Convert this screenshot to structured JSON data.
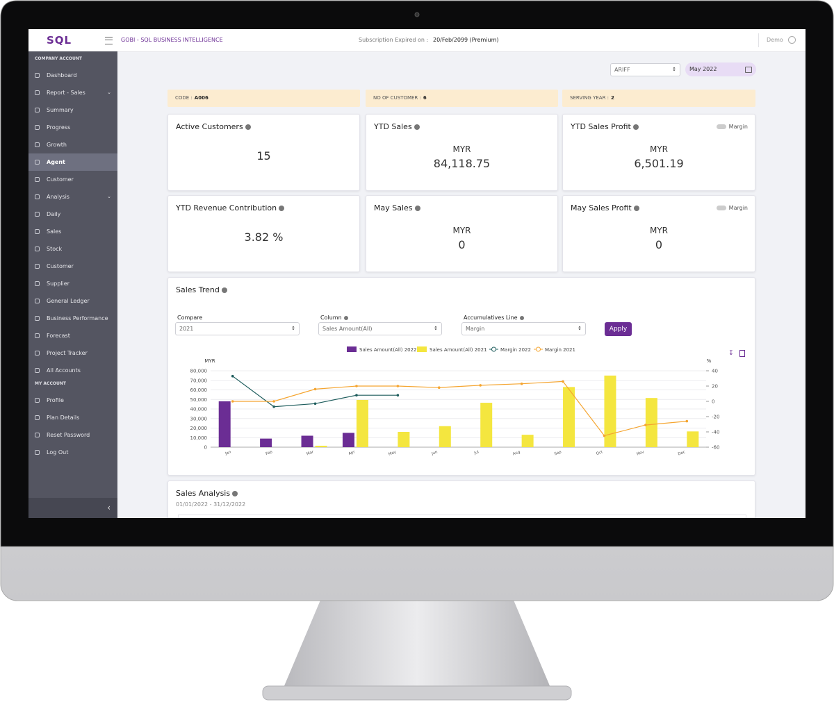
{
  "header": {
    "logo": "SQL",
    "app_title": "GOBI - SQL BUSINESS INTELLIGENCE",
    "subscription_label": "Subscription Expired on :",
    "subscription_value": "20/Feb/2099 (Premium)",
    "user": "Demo"
  },
  "sidebar": {
    "sections": [
      {
        "title": "COMPANY ACCOUNT",
        "items": [
          "Dashboard",
          "Report - Sales",
          "Summary",
          "Progress",
          "Growth",
          "Agent",
          "Customer",
          "Analysis",
          "Daily",
          "Sales",
          "Stock",
          "Customer",
          "Supplier",
          "General Ledger",
          "Business Performance",
          "Forecast",
          "Project Tracker",
          "All Accounts"
        ]
      },
      {
        "title": "MY ACCOUNT",
        "items": [
          "Profile",
          "Plan Details",
          "Reset Password",
          "Log Out"
        ]
      }
    ]
  },
  "filters": {
    "agent": "ARIFF",
    "month": "May 2022"
  },
  "info_bar": [
    {
      "label": "CODE :",
      "value": "A006"
    },
    {
      "label": "NO OF CUSTOMER :",
      "value": "6"
    },
    {
      "label": "SERVING YEAR :",
      "value": "2"
    }
  ],
  "cards": [
    {
      "title": "Active Customers",
      "value": "15"
    },
    {
      "title": "YTD Sales",
      "unit": "MYR",
      "value": "84,118.75"
    },
    {
      "title": "YTD Sales Profit",
      "unit": "MYR",
      "value": "6,501.19",
      "toggle": "Margin"
    },
    {
      "title": "YTD Revenue Contribution",
      "value": "3.82 %"
    },
    {
      "title": "May Sales",
      "unit": "MYR",
      "value": "0"
    },
    {
      "title": "May Sales Profit",
      "unit": "MYR",
      "value": "0",
      "toggle": "Margin"
    }
  ],
  "controls": [
    {
      "label": "Compare",
      "value": "2021"
    },
    {
      "label": "Column",
      "value": "Sales Amount(All)"
    },
    {
      "label": "Accumulatives Line",
      "value": "Margin"
    }
  ],
  "apply": "Apply",
  "chart_data": {
    "type": "combo",
    "title": "Sales Trend",
    "y_label": "MYR",
    "y2_label": "%",
    "categories": [
      "Jan",
      "Feb",
      "Mar",
      "Apr",
      "May",
      "Jun",
      "Jul",
      "Aug",
      "Sep",
      "Oct",
      "Nov",
      "Dec"
    ],
    "series": [
      {
        "name": "Sales Amount(All) 2022",
        "type": "bar",
        "color": "#6b2d94",
        "values": [
          48000,
          9000,
          12000,
          15000,
          0,
          null,
          null,
          null,
          null,
          null,
          null,
          null
        ]
      },
      {
        "name": "Sales Amount(All) 2021",
        "type": "bar",
        "color": "#f4e63f",
        "values": [
          0,
          0,
          1500,
          49500,
          16000,
          22000,
          46500,
          13000,
          63000,
          75000,
          51500,
          16500
        ]
      },
      {
        "name": "Margin 2022",
        "type": "line",
        "axis": "y2",
        "color": "#1d5c5c",
        "values": [
          33,
          -7,
          -3,
          8,
          8,
          null,
          null,
          null,
          null,
          null,
          null,
          null
        ]
      },
      {
        "name": "Margin 2021",
        "type": "line",
        "axis": "y2",
        "color": "#f5a530",
        "values": [
          0,
          0,
          16,
          20,
          20,
          18,
          21,
          23,
          26,
          -45,
          -31,
          -26
        ]
      }
    ],
    "ylim": [
      0,
      80000
    ],
    "yticks": [
      0,
      {
        "value": 10000,
        "label": "10,000"
      },
      {
        "value": 20000,
        "label": "20,000"
      },
      {
        "value": 30000,
        "label": "30,000"
      },
      {
        "value": 40000,
        "label": "40,000"
      },
      {
        "value": 50000,
        "label": "50,000"
      },
      {
        "value": 60000,
        "label": "60,000"
      },
      {
        "value": 70000,
        "label": "70,000"
      },
      {
        "value": 80000,
        "label": "80,000"
      }
    ],
    "y2lim": [
      -60,
      40
    ],
    "y2ticks": [
      -60,
      -40,
      -20,
      0,
      20,
      40
    ],
    "grid": true
  },
  "sales_analysis": {
    "title": "Sales Analysis",
    "date_range": "01/01/2022 - 31/12/2022"
  }
}
